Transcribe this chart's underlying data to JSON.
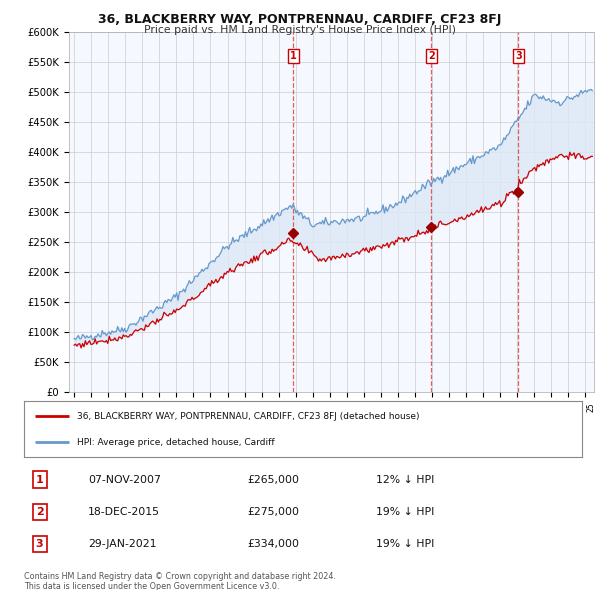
{
  "title": "36, BLACKBERRY WAY, PONTPRENNAU, CARDIFF, CF23 8FJ",
  "subtitle": "Price paid vs. HM Land Registry's House Price Index (HPI)",
  "legend_line1": "36, BLACKBERRY WAY, PONTPRENNAU, CARDIFF, CF23 8FJ (detached house)",
  "legend_line2": "HPI: Average price, detached house, Cardiff",
  "footer_line1": "Contains HM Land Registry data © Crown copyright and database right 2024.",
  "footer_line2": "This data is licensed under the Open Government Licence v3.0.",
  "ylim": [
    0,
    600000
  ],
  "yticks": [
    0,
    50000,
    100000,
    150000,
    200000,
    250000,
    300000,
    350000,
    400000,
    450000,
    500000,
    550000,
    600000
  ],
  "ytick_labels": [
    "£0",
    "£50K",
    "£100K",
    "£150K",
    "£200K",
    "£250K",
    "£300K",
    "£350K",
    "£400K",
    "£450K",
    "£500K",
    "£550K",
    "£600K"
  ],
  "sales": [
    {
      "num": 1,
      "date": "07-NOV-2007",
      "price": 265000,
      "pct": "12%",
      "direction": "↓",
      "year_x": 2007.85
    },
    {
      "num": 2,
      "date": "18-DEC-2015",
      "price": 275000,
      "pct": "19%",
      "direction": "↓",
      "year_x": 2015.95
    },
    {
      "num": 3,
      "date": "29-JAN-2021",
      "price": 334000,
      "pct": "19%",
      "direction": "↓",
      "year_x": 2021.07
    }
  ],
  "hpi_color": "#6699cc",
  "hpi_fill_color": "#dde8f5",
  "price_color": "#cc0000",
  "sale_dot_color": "#990000",
  "vline_color": "#dd4444",
  "background_color": "#ffffff",
  "plot_bg_color": "#f5f8ff",
  "grid_color": "#cccccc",
  "xlim_left": 1994.7,
  "xlim_right": 2025.5
}
